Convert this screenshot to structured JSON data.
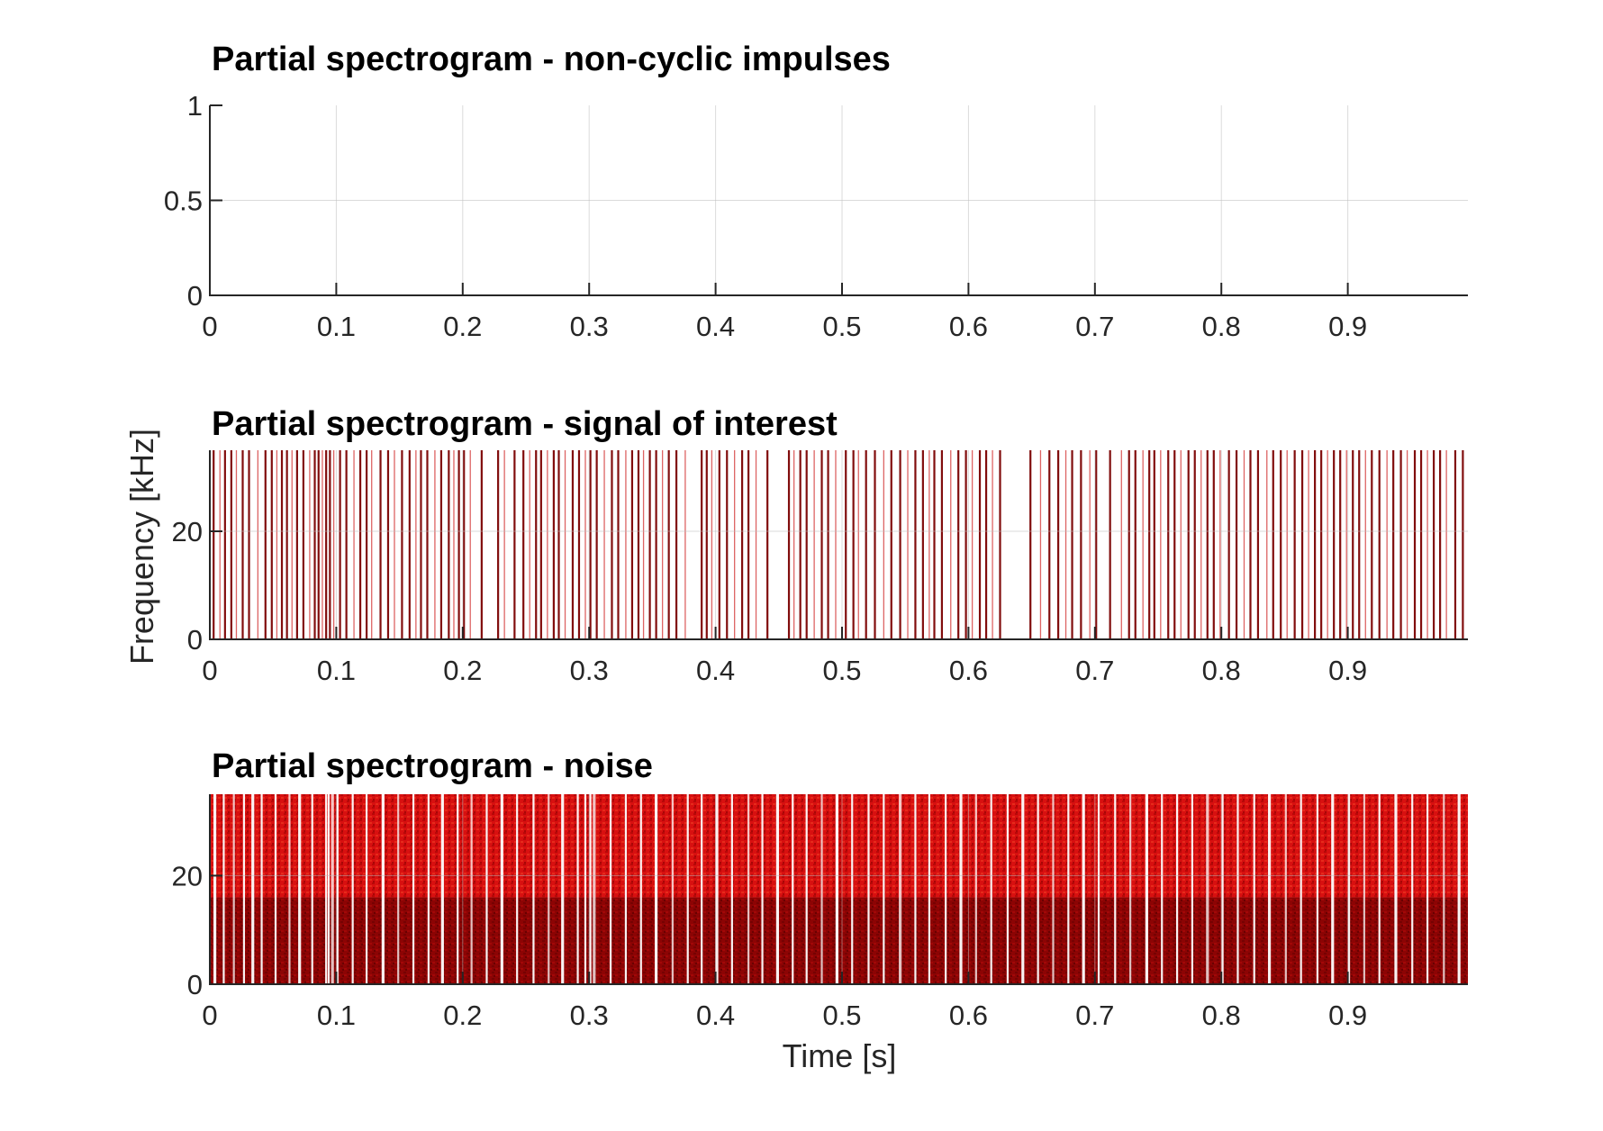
{
  "chart_data": [
    {
      "type": "heatmap",
      "title": "Partial spectrogram - non-cyclic impulses",
      "xlabel": "",
      "ylabel": "",
      "xlim": [
        0,
        0.995
      ],
      "ylim": [
        0,
        1
      ],
      "xticks": [
        0,
        0.1,
        0.2,
        0.3,
        0.4,
        0.5,
        0.6,
        0.7,
        0.8,
        0.9
      ],
      "xtick_labels": [
        "0",
        "0.1",
        "0.2",
        "0.3",
        "0.4",
        "0.5",
        "0.6",
        "0.7",
        "0.8",
        "0.9"
      ],
      "yticks": [
        0,
        0.5,
        1
      ],
      "ytick_labels": [
        "0",
        "0.5",
        "1"
      ],
      "grid": true,
      "content": "empty",
      "lines": []
    },
    {
      "type": "heatmap",
      "title": "Partial spectrogram - signal of interest",
      "xlabel": "",
      "ylabel": "Frequency [kHz]",
      "xlim": [
        0,
        0.995
      ],
      "ylim": [
        0,
        35
      ],
      "xticks": [
        0,
        0.1,
        0.2,
        0.3,
        0.4,
        0.5,
        0.6,
        0.7,
        0.8,
        0.9
      ],
      "xtick_labels": [
        "0",
        "0.1",
        "0.2",
        "0.3",
        "0.4",
        "0.5",
        "0.6",
        "0.7",
        "0.8",
        "0.9"
      ],
      "yticks": [
        0,
        20
      ],
      "ytick_labels": [
        "0",
        "20"
      ],
      "grid": true,
      "content": "sparse vertical broadband impulse lines, dark red",
      "lines": [
        0.003,
        0.008,
        0.012,
        0.017,
        0.021,
        0.026,
        0.031,
        0.038,
        0.044,
        0.049,
        0.053,
        0.057,
        0.061,
        0.065,
        0.069,
        0.074,
        0.079,
        0.083,
        0.086,
        0.089,
        0.092,
        0.095,
        0.098,
        0.103,
        0.108,
        0.114,
        0.119,
        0.124,
        0.128,
        0.135,
        0.141,
        0.146,
        0.152,
        0.158,
        0.163,
        0.167,
        0.172,
        0.178,
        0.183,
        0.189,
        0.193,
        0.197,
        0.201,
        0.206,
        0.215,
        0.228,
        0.233,
        0.241,
        0.248,
        0.253,
        0.258,
        0.262,
        0.267,
        0.272,
        0.276,
        0.281,
        0.287,
        0.292,
        0.297,
        0.301,
        0.306,
        0.312,
        0.318,
        0.323,
        0.329,
        0.334,
        0.339,
        0.343,
        0.348,
        0.353,
        0.358,
        0.363,
        0.369,
        0.376,
        0.389,
        0.393,
        0.397,
        0.403,
        0.409,
        0.415,
        0.421,
        0.426,
        0.432,
        0.441,
        0.458,
        0.462,
        0.467,
        0.472,
        0.478,
        0.484,
        0.489,
        0.495,
        0.503,
        0.509,
        0.513,
        0.519,
        0.526,
        0.533,
        0.539,
        0.546,
        0.552,
        0.558,
        0.564,
        0.569,
        0.573,
        0.579,
        0.586,
        0.592,
        0.598,
        0.603,
        0.609,
        0.614,
        0.619,
        0.625,
        0.649,
        0.657,
        0.664,
        0.671,
        0.677,
        0.682,
        0.689,
        0.696,
        0.701,
        0.712,
        0.721,
        0.727,
        0.732,
        0.738,
        0.743,
        0.747,
        0.752,
        0.758,
        0.763,
        0.768,
        0.774,
        0.779,
        0.784,
        0.789,
        0.794,
        0.799,
        0.806,
        0.812,
        0.818,
        0.823,
        0.829,
        0.836,
        0.841,
        0.847,
        0.852,
        0.858,
        0.864,
        0.869,
        0.874,
        0.879,
        0.884,
        0.889,
        0.894,
        0.899,
        0.904,
        0.909,
        0.914,
        0.919,
        0.925,
        0.931,
        0.936,
        0.942,
        0.947,
        0.953,
        0.958,
        0.963,
        0.968,
        0.973,
        0.978,
        0.985,
        0.991
      ]
    },
    {
      "type": "heatmap",
      "title": "Partial spectrogram - noise",
      "xlabel": "Time [s]",
      "ylabel": "",
      "xlim": [
        0,
        0.995
      ],
      "ylim": [
        0,
        35
      ],
      "xticks": [
        0,
        0.1,
        0.2,
        0.3,
        0.4,
        0.5,
        0.6,
        0.7,
        0.8,
        0.9
      ],
      "xtick_labels": [
        "0",
        "0.1",
        "0.2",
        "0.3",
        "0.4",
        "0.5",
        "0.6",
        "0.7",
        "0.8",
        "0.9"
      ],
      "yticks": [
        0,
        20
      ],
      "ytick_labels": [
        "0",
        "20"
      ],
      "grid": true,
      "content": "dense red noise fill with white vertical gaps; darker below ~16 kHz",
      "band_boundary_khz": 16,
      "gaps": [
        0.004,
        0.011,
        0.019,
        0.027,
        0.034,
        0.041,
        0.052,
        0.063,
        0.071,
        0.081,
        0.092,
        0.094,
        0.097,
        0.101,
        0.113,
        0.124,
        0.137,
        0.149,
        0.161,
        0.173,
        0.184,
        0.196,
        0.207,
        0.219,
        0.231,
        0.243,
        0.256,
        0.268,
        0.279,
        0.291,
        0.297,
        0.301,
        0.304,
        0.317,
        0.329,
        0.341,
        0.353,
        0.366,
        0.378,
        0.389,
        0.401,
        0.413,
        0.426,
        0.437,
        0.449,
        0.461,
        0.472,
        0.484,
        0.496,
        0.508,
        0.521,
        0.533,
        0.546,
        0.558,
        0.569,
        0.582,
        0.594,
        0.606,
        0.618,
        0.631,
        0.643,
        0.655,
        0.667,
        0.679,
        0.691,
        0.703,
        0.716,
        0.728,
        0.741,
        0.753,
        0.765,
        0.777,
        0.789,
        0.801,
        0.813,
        0.826,
        0.838,
        0.851,
        0.863,
        0.876,
        0.888,
        0.901,
        0.913,
        0.925,
        0.938,
        0.951,
        0.963,
        0.976,
        0.988
      ]
    }
  ]
}
